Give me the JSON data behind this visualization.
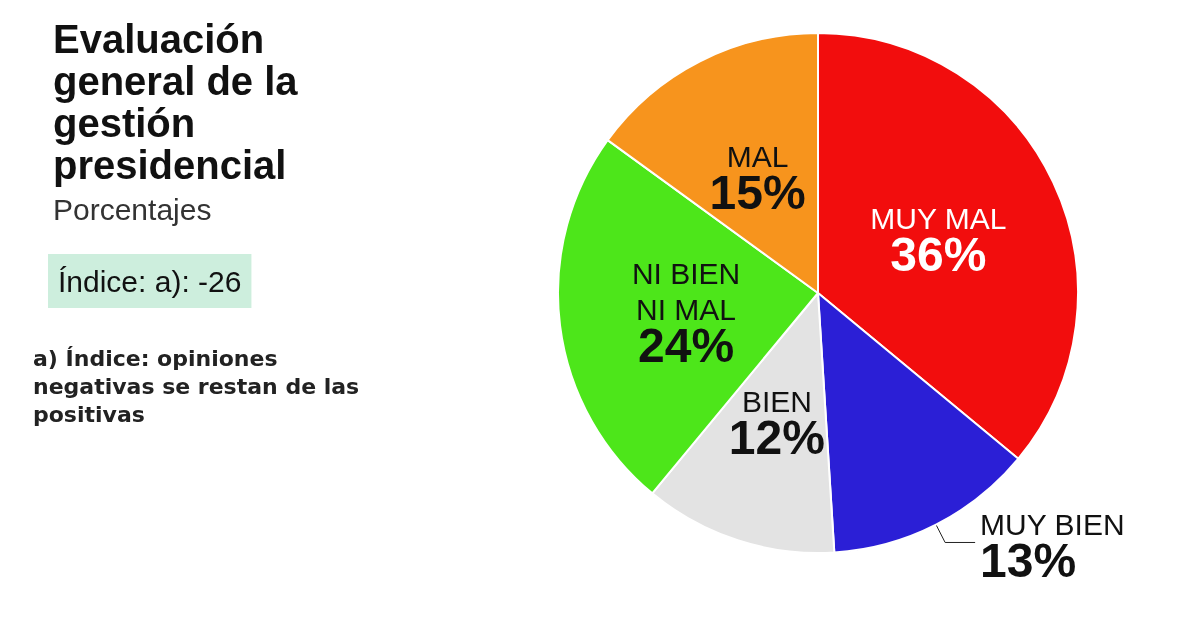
{
  "chart_data": {
    "type": "pie",
    "title": "Evaluación general de la gestión presidencial",
    "subtitle": "Porcentajes",
    "categories": [
      "MUY MAL",
      "MUY BIEN",
      "BIEN",
      "NI BIEN NI MAL",
      "MAL"
    ],
    "values": [
      36,
      13,
      12,
      24,
      15
    ],
    "colors": [
      "#f20d0d",
      "#2b1fd6",
      "#e3e3e3",
      "#4de61a",
      "#f7941d"
    ],
    "value_labels": [
      "36%",
      "13%",
      "12%",
      "24%",
      "15%"
    ],
    "legend": false,
    "annotations": [
      "Índice: a): -26",
      "a) Índice: opiniones negativas se restan de las positivas"
    ]
  }
}
